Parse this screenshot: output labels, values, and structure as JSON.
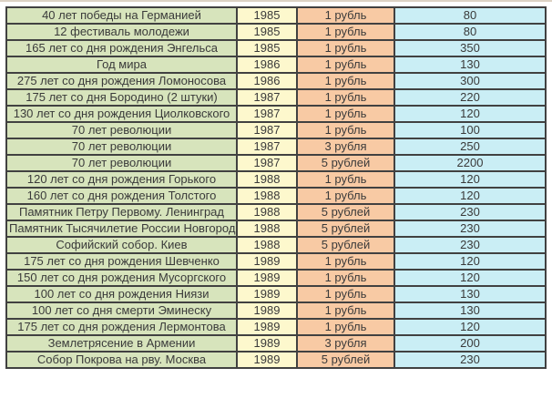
{
  "colors": {
    "name_bg": "#d7e4bc",
    "year_bg": "#fdf8cd",
    "denom_bg": "#f8caa4",
    "price_bg": "#caeef5",
    "border": "#414141",
    "text": "#3a3a3a"
  },
  "table": {
    "rows": [
      {
        "name": "40 лет победы на Германией",
        "year": 1985,
        "denomination": "1 рубль",
        "price": 80
      },
      {
        "name": "12 фестиваль молодежи",
        "year": 1985,
        "denomination": "1 рубль",
        "price": 80
      },
      {
        "name": "165 лет со дня рождения Энгельса",
        "year": 1985,
        "denomination": "1 рубль",
        "price": 350
      },
      {
        "name": "Год мира",
        "year": 1986,
        "denomination": "1 рубль",
        "price": 130
      },
      {
        "name": "275 лет со дня рождения Ломоносова",
        "year": 1986,
        "denomination": "1 рубль",
        "price": 300
      },
      {
        "name": "175 лет со дня Бородино (2 штуки)",
        "year": 1987,
        "denomination": "1 рубль",
        "price": 220
      },
      {
        "name": "130 лет со дня рождения Циолковского",
        "year": 1987,
        "denomination": "1 рубль",
        "price": 120
      },
      {
        "name": "70 лет революции",
        "year": 1987,
        "denomination": "1 рубль",
        "price": 100
      },
      {
        "name": "70 лет революции",
        "year": 1987,
        "denomination": "3 рубля",
        "price": 250
      },
      {
        "name": "70 лет революции",
        "year": 1987,
        "denomination": "5 рублей",
        "price": 2200
      },
      {
        "name": "120 лет со дня рождения Горького",
        "year": 1988,
        "denomination": "1 рубль",
        "price": 120
      },
      {
        "name": "160 лет со дня рождения Толстого",
        "year": 1988,
        "denomination": "1 рубль",
        "price": 120
      },
      {
        "name": "Памятник Петру Первому. Ленинград",
        "year": 1988,
        "denomination": "5 рублей",
        "price": 230
      },
      {
        "name": "Памятник Тысячилетие России Новгород",
        "year": 1988,
        "denomination": "5 рублей",
        "price": 230
      },
      {
        "name": "Софийский собор. Киев",
        "year": 1988,
        "denomination": "5 рублей",
        "price": 230
      },
      {
        "name": "175 лет со дня рождения Шевченко",
        "year": 1989,
        "denomination": "1 рубль",
        "price": 120
      },
      {
        "name": "150 лет со дня рождения Мусоргского",
        "year": 1989,
        "denomination": "1 рубль",
        "price": 120
      },
      {
        "name": "100 лет со дня рождения Ниязи",
        "year": 1989,
        "denomination": "1 рубль",
        "price": 130
      },
      {
        "name": "100 лет со дня смерти Эминеску",
        "year": 1989,
        "denomination": "1 рубль",
        "price": 130
      },
      {
        "name": "175 лет со дня рождения Лермонтова",
        "year": 1989,
        "denomination": "1 рубль",
        "price": 120
      },
      {
        "name": "Землетрясение в Армении",
        "year": 1989,
        "denomination": "3 рубля",
        "price": 200
      },
      {
        "name": "Собор Покрова на рву. Москва",
        "year": 1989,
        "denomination": "5 рублей",
        "price": 230
      }
    ]
  }
}
